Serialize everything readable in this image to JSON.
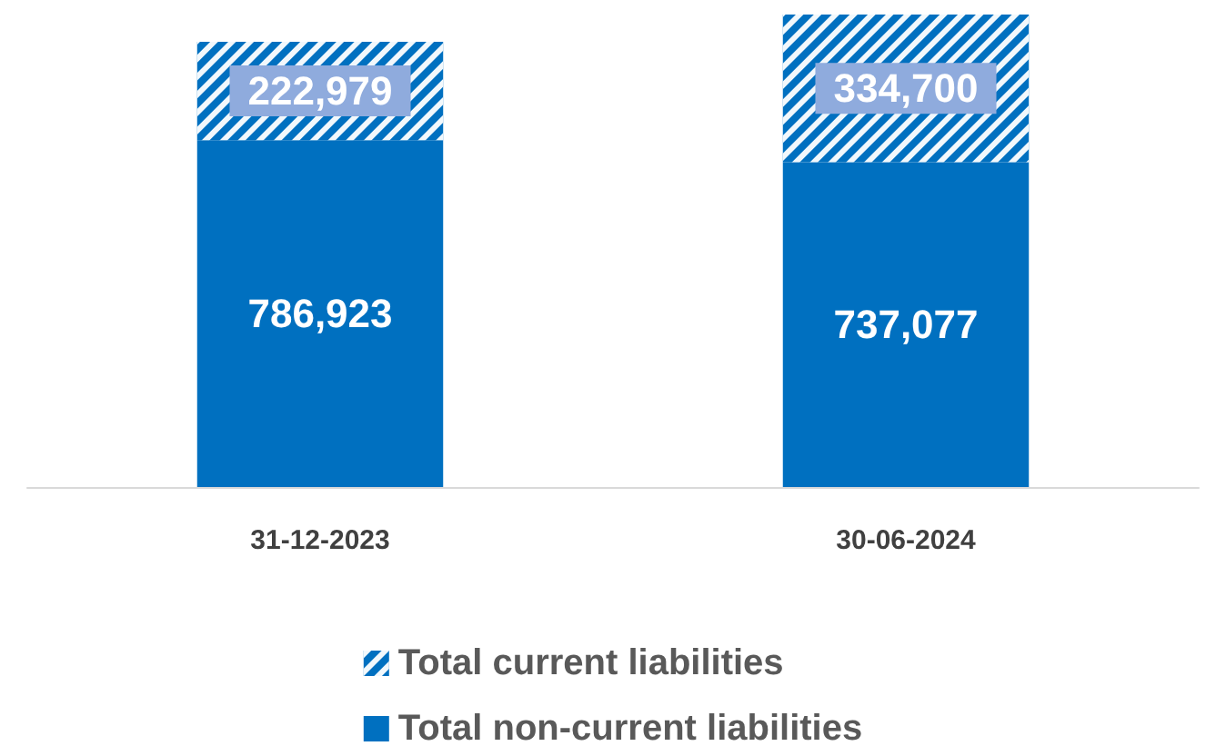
{
  "chart_data": {
    "type": "bar",
    "categories": [
      "31-12-2023",
      "30-06-2024"
    ],
    "series": [
      {
        "name": "Total non-current liabilities",
        "color": "#0070c0",
        "values": [
          786923,
          737077
        ],
        "value_labels": [
          "786,923",
          "737,077"
        ]
      },
      {
        "name": "Total current liabilities",
        "color": "#0070c0",
        "values": [
          222979,
          334700
        ],
        "value_labels": [
          "222,979",
          "334,700"
        ]
      }
    ],
    "stacked": true,
    "legend": "bottom"
  }
}
